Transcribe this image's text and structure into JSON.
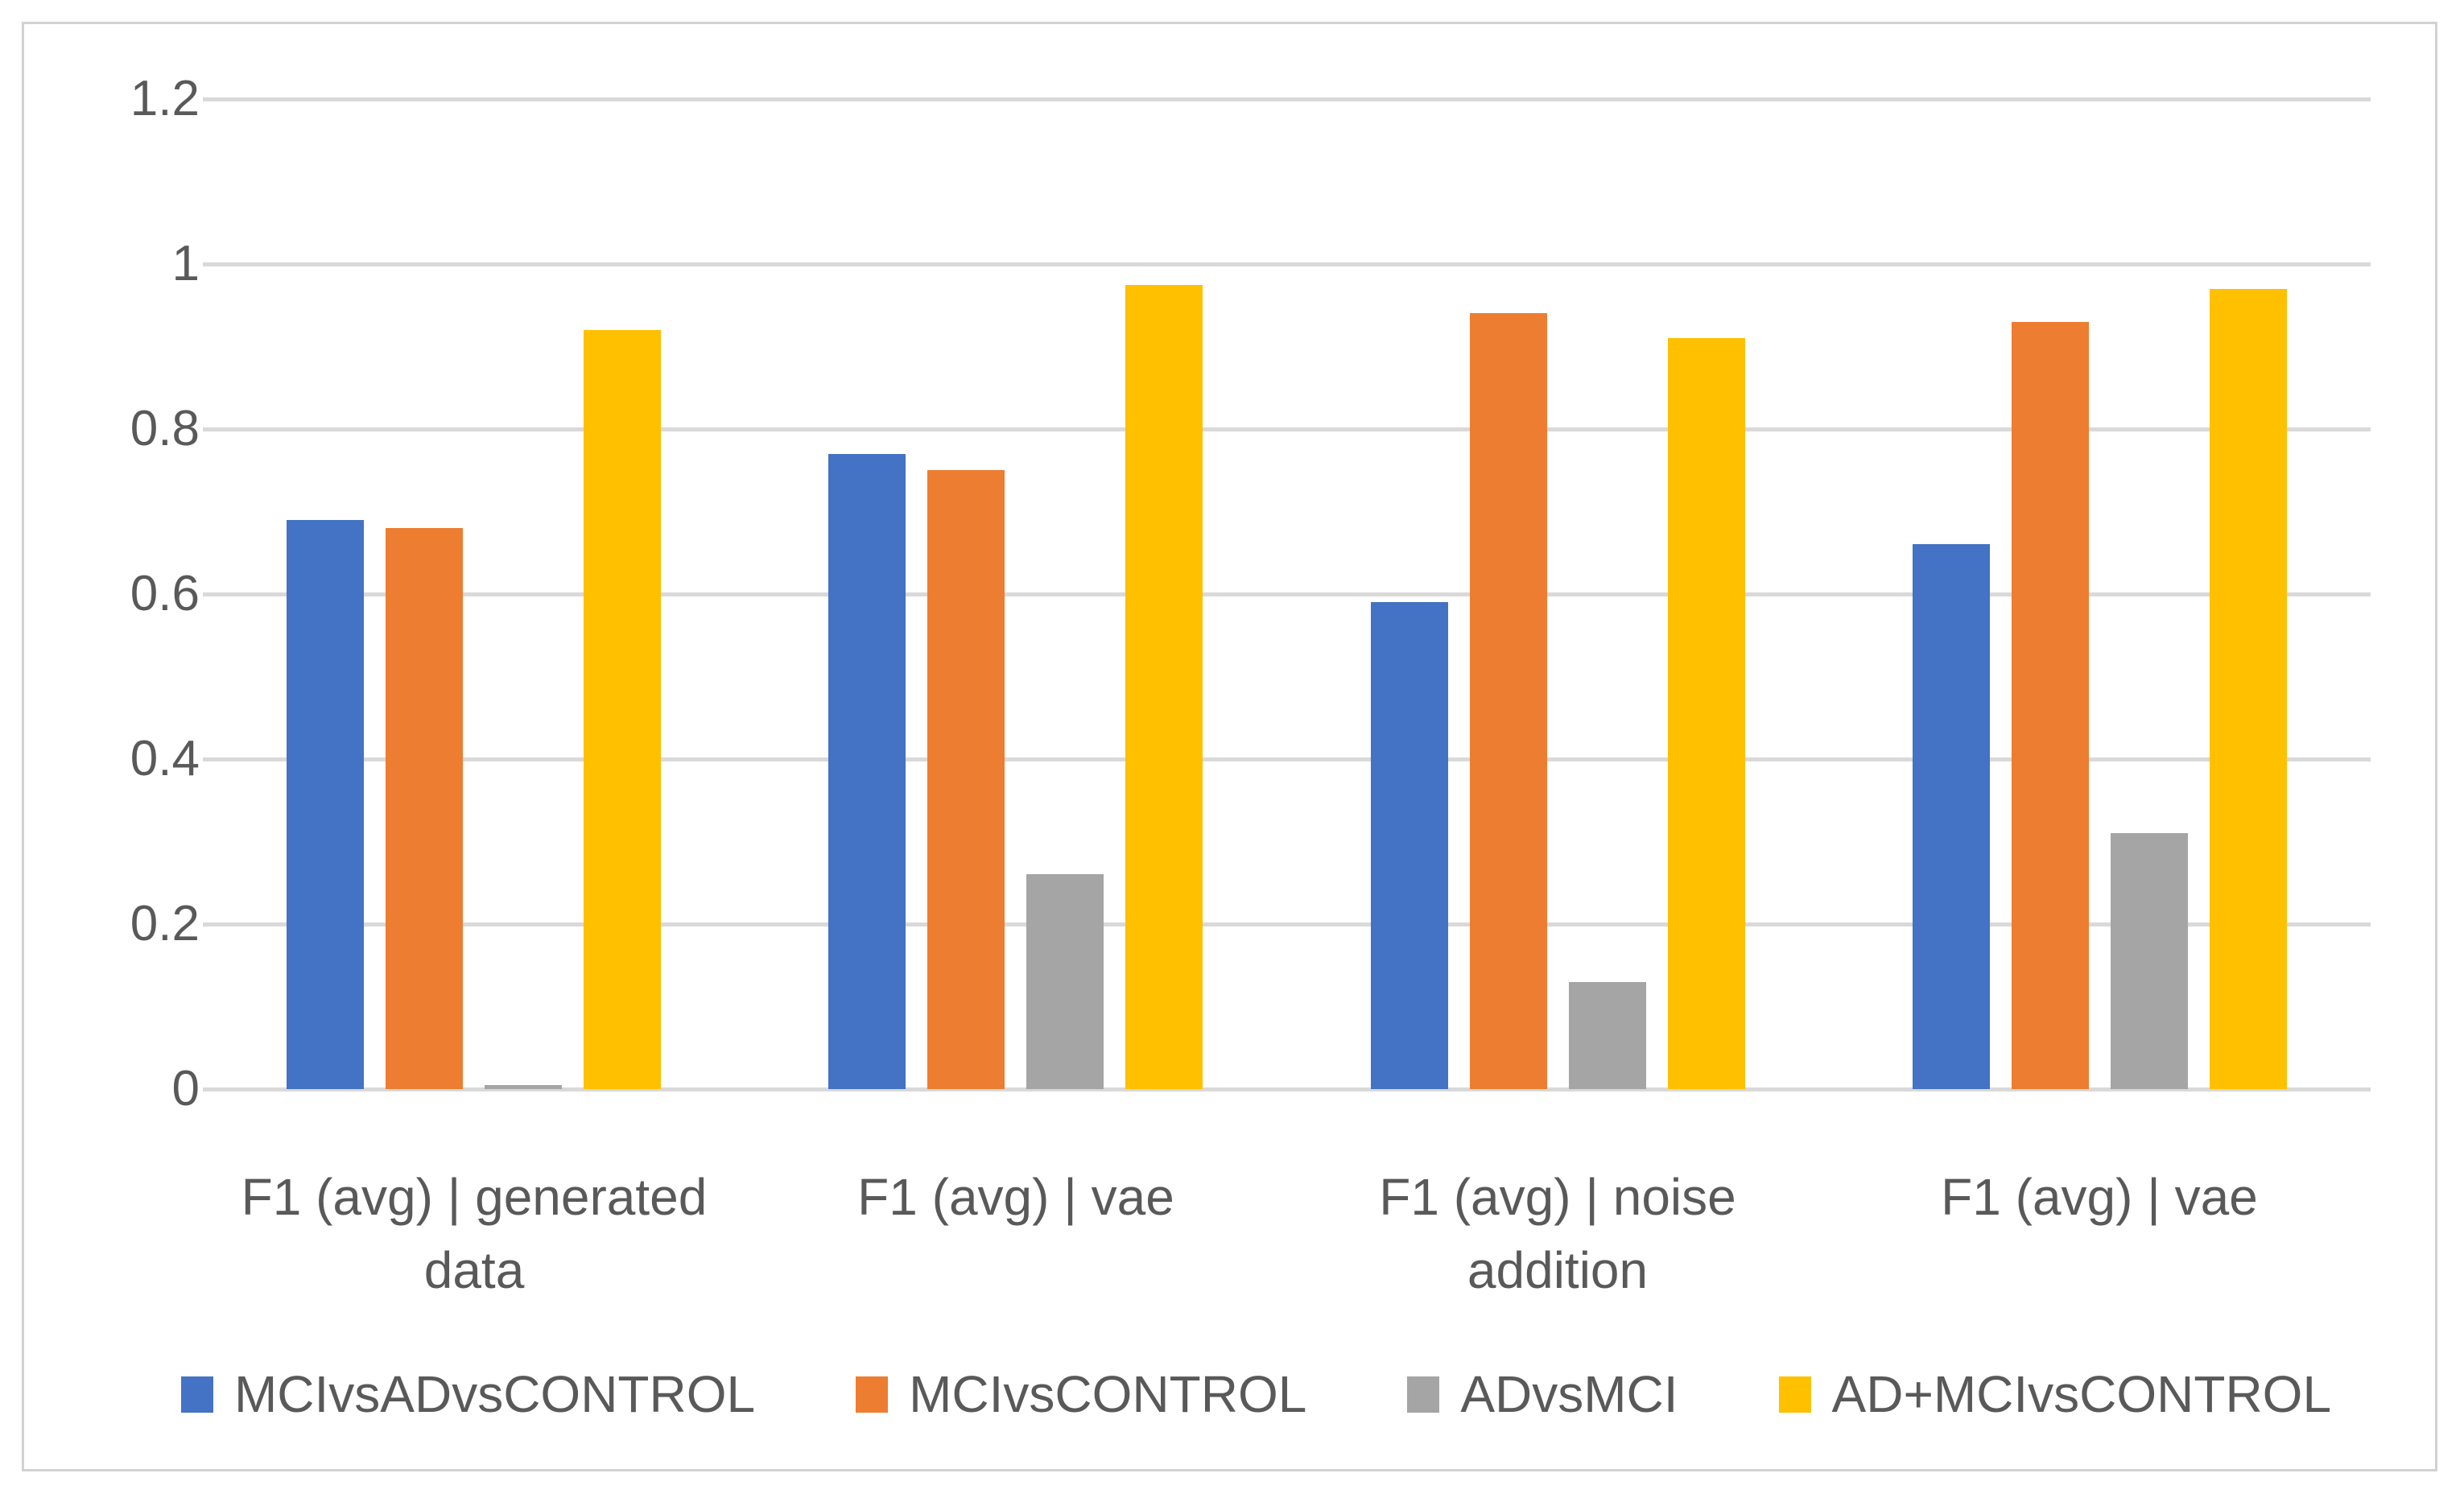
{
  "chart_data": {
    "type": "bar",
    "title": "",
    "categories": [
      "F1 (avg) | generated data",
      "F1 (avg) | vae",
      "F1 (avg) | noise addition",
      "F1 (avg) | vae"
    ],
    "series": [
      {
        "name": "MCIvsADvsCONTROL",
        "color": "#4472C4",
        "values": [
          0.69,
          0.77,
          0.59,
          0.66
        ]
      },
      {
        "name": "MCIvsCONTROL",
        "color": "#ED7D31",
        "values": [
          0.68,
          0.75,
          0.94,
          0.93
        ]
      },
      {
        "name": "ADvsMCI",
        "color": "#A5A5A5",
        "values": [
          0.005,
          0.26,
          0.13,
          0.31
        ]
      },
      {
        "name": "AD+MCIvsCONTROL",
        "color": "#FFC000",
        "values": [
          0.92,
          0.975,
          0.91,
          0.97
        ]
      }
    ],
    "y_axis": {
      "min": 0,
      "max": 1.2,
      "step": 0.2,
      "tick_labels": [
        "0",
        "0.2",
        "0.4",
        "0.6",
        "0.8",
        "1",
        "1.2"
      ]
    },
    "grid": true,
    "legend_position": "bottom",
    "colors": {
      "gridline": "#D9D9D9",
      "axis_text": "#595959",
      "frame_border": "#D2D2D2",
      "background": "#FFFFFF"
    }
  }
}
